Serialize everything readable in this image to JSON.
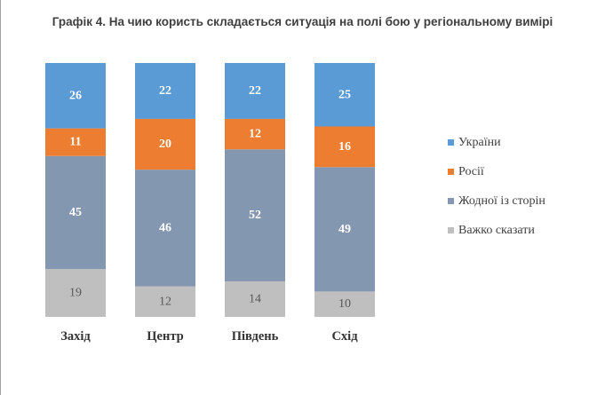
{
  "title": "Графік 4. На чию користь складається ситуація на полі бою у регіональному вимірі",
  "chart_data": {
    "type": "bar",
    "stacked": true,
    "percent_stacked": true,
    "title": "Графік 4. На чию користь складається ситуація на полі бою у регіональному вимірі",
    "categories": [
      "Захід",
      "Центр",
      "Південь",
      "Схід"
    ],
    "series": [
      {
        "name": "Важко сказати",
        "values": [
          19,
          12,
          14,
          10
        ],
        "color": "#bfbfbf",
        "label_color": "#595959",
        "label_bold": false
      },
      {
        "name": "Жодної із сторін",
        "values": [
          45,
          46,
          52,
          49
        ],
        "color": "#8497b0",
        "label_color": "#ffffff",
        "label_bold": true
      },
      {
        "name": "Росії",
        "values": [
          11,
          20,
          12,
          16
        ],
        "color": "#ed7d31",
        "label_color": "#ffffff",
        "label_bold": true
      },
      {
        "name": "України",
        "values": [
          26,
          22,
          22,
          25
        ],
        "color": "#5b9bd5",
        "label_color": "#ffffff",
        "label_bold": true
      }
    ],
    "legend_position": "right",
    "legend_order": [
      "України",
      "Росії",
      "Жодної із сторін",
      "Важко сказати"
    ],
    "grid": false
  }
}
